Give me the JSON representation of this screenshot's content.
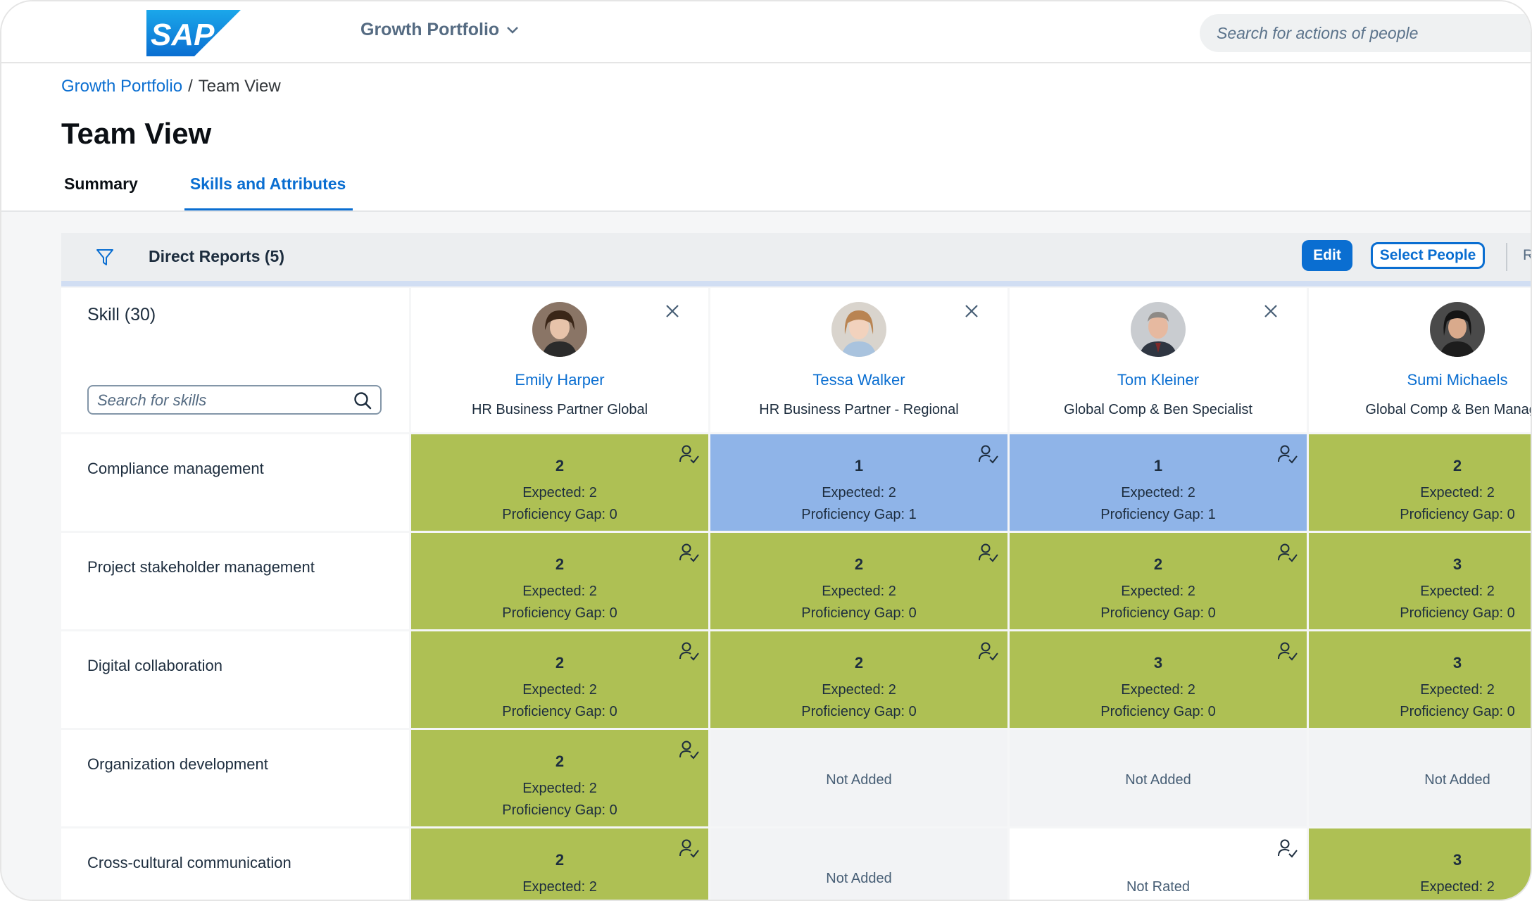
{
  "header": {
    "portfolio_menu": "Growth Portfolio",
    "search_placeholder": "Search for actions of people"
  },
  "breadcrumb": {
    "link": "Growth Portfolio",
    "separator": "/",
    "current": "Team View"
  },
  "page_title": "Team View",
  "tabs": [
    {
      "label": "Summary"
    },
    {
      "label": "Skills and Attributes",
      "active": true
    }
  ],
  "toolbar": {
    "direct_reports": "Direct Reports (5)",
    "edit": "Edit",
    "select_people": "Select People",
    "overflow": "R"
  },
  "skills_header": {
    "title": "Skill (30)",
    "search_placeholder": "Search for skills"
  },
  "people": [
    {
      "name": "Emily Harper",
      "role": "HR Business Partner Global"
    },
    {
      "name": "Tessa Walker",
      "role": "HR Business Partner - Regional"
    },
    {
      "name": "Tom Kleiner",
      "role": "Global Comp & Ben Specialist"
    },
    {
      "name": "Sumi Michaels",
      "role": "Global Comp & Ben Manager"
    }
  ],
  "skills": [
    {
      "name": "Compliance management",
      "ratings": [
        {
          "level": "2",
          "expected": "Expected: 2",
          "gap": "Proficiency Gap: 0"
        },
        {
          "level": "1",
          "expected": "Expected: 2",
          "gap": "Proficiency Gap: 1"
        },
        {
          "level": "1",
          "expected": "Expected: 2",
          "gap": "Proficiency Gap: 1"
        },
        {
          "level": "2",
          "expected": "Expected: 2",
          "gap": "Proficiency Gap: 0"
        }
      ]
    },
    {
      "name": "Project stakeholder management",
      "ratings": [
        {
          "level": "2",
          "expected": "Expected: 2",
          "gap": "Proficiency Gap: 0"
        },
        {
          "level": "2",
          "expected": "Expected: 2",
          "gap": "Proficiency Gap: 0"
        },
        {
          "level": "2",
          "expected": "Expected: 2",
          "gap": "Proficiency Gap: 0"
        },
        {
          "level": "3",
          "expected": "Expected: 2",
          "gap": "Proficiency Gap: 0"
        }
      ]
    },
    {
      "name": "Digital collaboration",
      "ratings": [
        {
          "level": "2",
          "expected": "Expected: 2",
          "gap": "Proficiency Gap: 0"
        },
        {
          "level": "2",
          "expected": "Expected: 2",
          "gap": "Proficiency Gap: 0"
        },
        {
          "level": "3",
          "expected": "Expected: 2",
          "gap": "Proficiency Gap: 0"
        },
        {
          "level": "3",
          "expected": "Expected: 2",
          "gap": "Proficiency Gap: 0"
        }
      ]
    },
    {
      "name": "Organization development",
      "ratings": [
        {
          "level": "2",
          "expected": "Expected: 2",
          "gap": "Proficiency Gap: 0"
        },
        {
          "status": "Not Added"
        },
        {
          "status": "Not Added"
        },
        {
          "status": "Not Added"
        }
      ]
    },
    {
      "name": "Cross-cultural communication",
      "ratings": [
        {
          "level": "2",
          "expected": "Expected: 2"
        },
        {
          "status": "Not Added"
        },
        {
          "status": "Not Rated"
        },
        {
          "level": "3",
          "expected": "Expected: 2"
        }
      ]
    }
  ],
  "colors": {
    "meets": "#aec054",
    "below": "#8fb4e8",
    "not_added": "#f2f3f5",
    "accent": "#0a6ed1"
  },
  "icons": {
    "filter": "filter-icon",
    "close": "close-icon",
    "assess": "user-check-icon",
    "search": "search-icon"
  }
}
